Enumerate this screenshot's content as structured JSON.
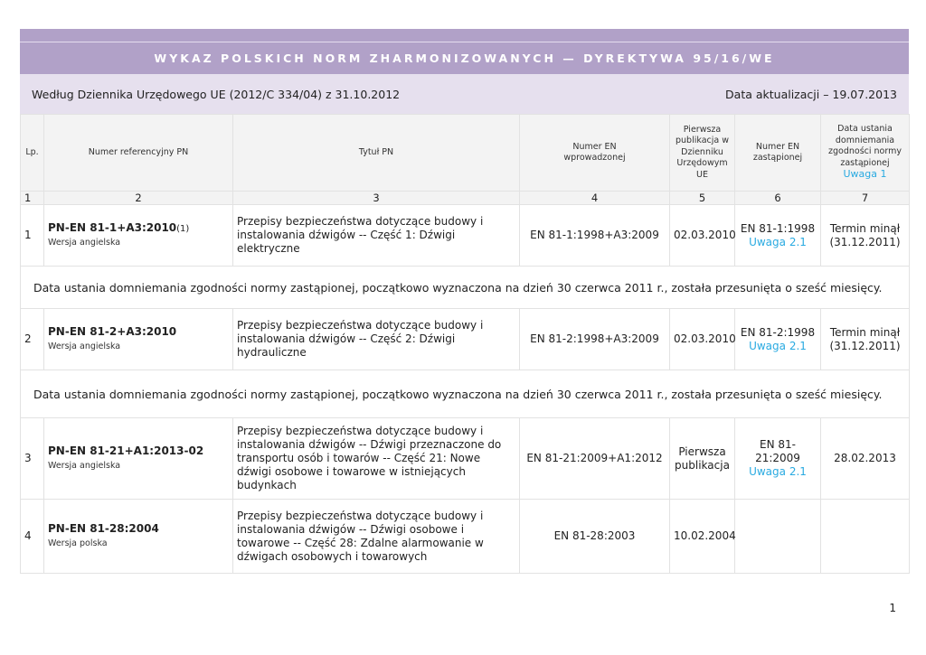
{
  "title": "WYKAZ POLSKICH NORM ZHARMONIZOWANYCH — DYREKTYWA 95/16/WE",
  "source": "Według Dziennika Urzędowego UE (2012/C 334/04) z 31.10.2012",
  "update": "Data aktualizacji – 19.07.2013",
  "headers": [
    "Lp.",
    "Numer referencyjny PN",
    "Tytuł PN",
    "Numer EN wprowadzonej",
    "Pierwsza publikacja w Dzienniku Urzędowym UE",
    "Numer EN zastąpionej",
    "Data ustania domniemania zgodności normy zastąpionej"
  ],
  "header_note": "Uwaga 1",
  "col_numbers": [
    "1",
    "2",
    "3",
    "4",
    "5",
    "6",
    "7"
  ],
  "rows": [
    {
      "lp": "1",
      "ref": "PN-EN 81-1+A3:2010",
      "ref_sup": "(1)",
      "version": "Wersja angielska",
      "title": "Przepisy bezpieczeństwa dotyczące budowy i instalowania dźwigów -- Część 1: Dźwigi elektryczne",
      "en": "EN 81-1:1998+A3:2009",
      "pub": "02.03.2010",
      "replaced": "EN 81-1:1998",
      "note": "Uwaga 2.1",
      "date": "Termin minął (31.12.2011)",
      "footnote": "Data ustania domniemania zgodności normy zastąpionej, początkowo wyznaczona na dzień 30 czerwca 2011 r., została przesunięta o sześć miesięcy."
    },
    {
      "lp": "2",
      "ref": "PN-EN 81-2+A3:2010",
      "ref_sup": "",
      "version": "Wersja angielska",
      "title": "Przepisy bezpieczeństwa dotyczące budowy i instalowania dźwigów -- Część 2: Dźwigi hydrauliczne",
      "en": "EN 81-2:1998+A3:2009",
      "pub": "02.03.2010",
      "replaced": "EN 81-2:1998",
      "note": "Uwaga 2.1",
      "date": "Termin minął (31.12.2011)",
      "footnote": "Data ustania domniemania zgodności normy zastąpionej, początkowo wyznaczona na dzień 30 czerwca 2011 r., została przesunięta o sześć miesięcy."
    },
    {
      "lp": "3",
      "ref": "PN-EN 81-21+A1:2013-02",
      "ref_sup": "",
      "version": "Wersja angielska",
      "title": "Przepisy bezpieczeństwa dotyczące budowy i instalowania dźwigów -- Dźwigi przeznaczone do transportu osób i towarów -- Część 21: Nowe dźwigi osobowe i towarowe w istniejących budynkach",
      "en": "EN 81-21:2009+A1:2012",
      "pub": "Pierwsza publikacja",
      "replaced": "EN 81-21:2009",
      "note": "Uwaga 2.1",
      "date": "28.02.2013"
    },
    {
      "lp": "4",
      "ref": "PN-EN 81-28:2004",
      "ref_sup": "",
      "version": "Wersja polska",
      "title": "Przepisy bezpieczeństwa dotyczące budowy i instalowania dźwigów -- Dźwigi osobowe i towarowe -- Część 28: Zdalne alarmowanie w dźwigach osobowych i towarowych",
      "en": "EN 81-28:2003",
      "pub": "10.02.2004",
      "replaced": "",
      "note": "",
      "date": ""
    }
  ],
  "page_number": "1"
}
